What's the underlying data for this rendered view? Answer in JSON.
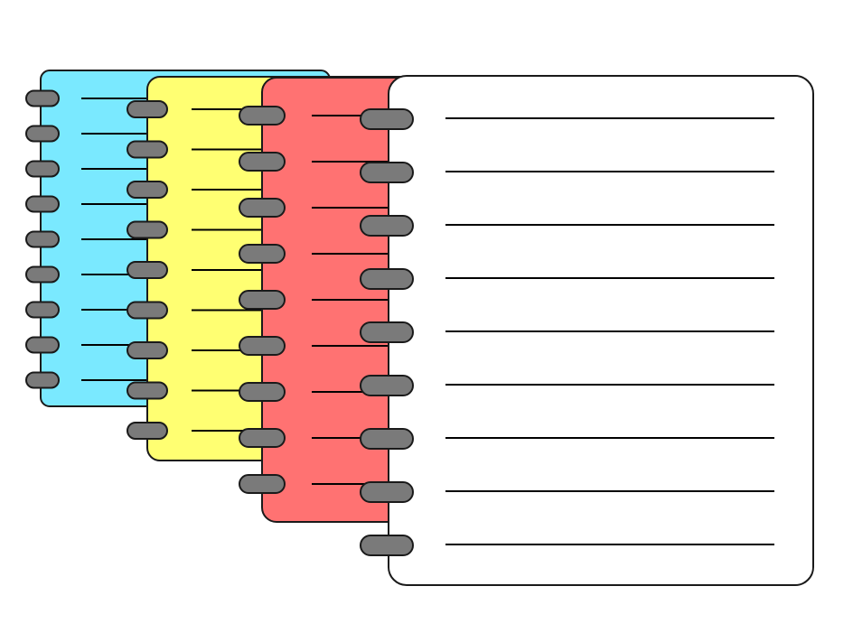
{
  "notebooks": [
    {
      "id": "blue",
      "color": "#7ae9ff",
      "rings": 9,
      "lines": 9
    },
    {
      "id": "yellow",
      "color": "#ffff72",
      "rings": 9,
      "lines": 9
    },
    {
      "id": "red",
      "color": "#ff7272",
      "rings": 9,
      "lines": 9
    },
    {
      "id": "white",
      "color": "#ffffff",
      "rings": 9,
      "lines": 9
    }
  ],
  "ring_color": "#7a7a7a",
  "outline_color": "#1a1a1a"
}
